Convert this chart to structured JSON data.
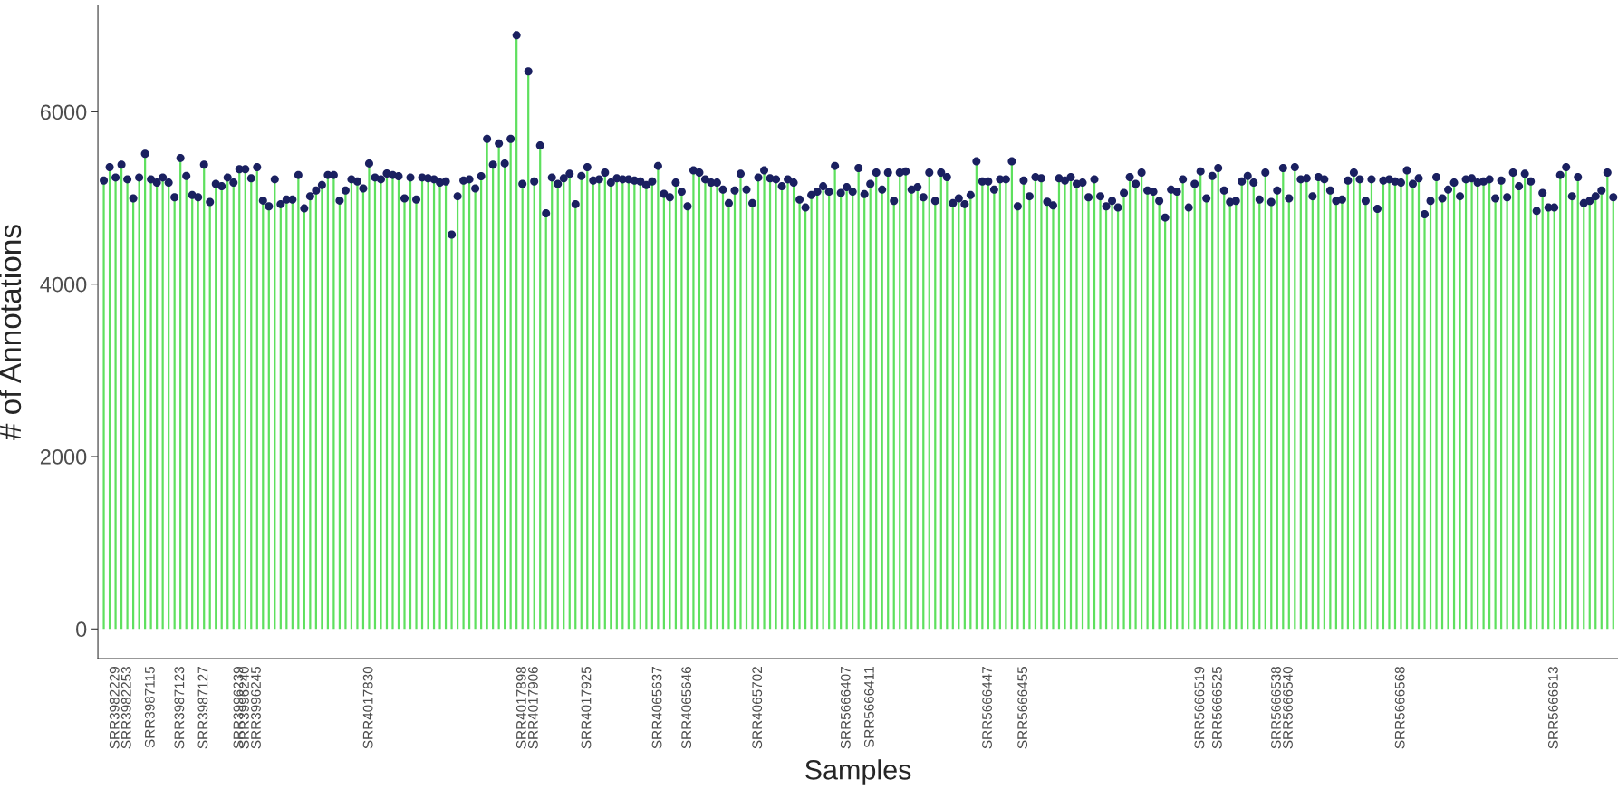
{
  "chart_data": {
    "type": "lollipop",
    "xlabel": "Samples",
    "ylabel": "# of Annotations",
    "categories": [
      null,
      null,
      "SRR3982229",
      null,
      "SRR3982253",
      null,
      null,
      null,
      "SRR3987115",
      null,
      null,
      null,
      null,
      "SRR3987123",
      null,
      null,
      null,
      "SRR3987127",
      null,
      null,
      null,
      null,
      null,
      "SRR3996239",
      "SRR3996240",
      null,
      "SRR3996245",
      null,
      null,
      null,
      null,
      null,
      null,
      null,
      null,
      null,
      null,
      null,
      null,
      null,
      null,
      null,
      null,
      null,
      null,
      "SRR4017830",
      null,
      null,
      null,
      null,
      null,
      null,
      null,
      null,
      null,
      null,
      null,
      null,
      null,
      null,
      null,
      null,
      null,
      null,
      null,
      null,
      null,
      null,
      null,
      null,
      null,
      "SRR4017898",
      null,
      "SRR4017906",
      null,
      null,
      null,
      null,
      null,
      null,
      null,
      null,
      "SRR4017925",
      null,
      null,
      null,
      null,
      null,
      null,
      null,
      null,
      null,
      null,
      null,
      "SRR4065637",
      null,
      null,
      null,
      null,
      "SRR4065646",
      null,
      null,
      null,
      null,
      null,
      null,
      null,
      null,
      null,
      null,
      null,
      "SRR4065702",
      null,
      null,
      null,
      null,
      null,
      null,
      null,
      null,
      null,
      null,
      null,
      null,
      null,
      null,
      "SRR5666407",
      null,
      null,
      null,
      "SRR5666411",
      null,
      null,
      null,
      null,
      null,
      null,
      null,
      null,
      null,
      null,
      null,
      null,
      null,
      null,
      null,
      null,
      null,
      null,
      null,
      "SRR5666447",
      null,
      null,
      null,
      null,
      null,
      "SRR5666455",
      null,
      null,
      null,
      null,
      null,
      null,
      null,
      null,
      null,
      null,
      null,
      null,
      null,
      null,
      null,
      null,
      null,
      null,
      null,
      null,
      null,
      null,
      null,
      null,
      null,
      null,
      null,
      null,
      null,
      "SRR5666519",
      null,
      null,
      "SRR5666525",
      null,
      null,
      null,
      null,
      null,
      null,
      null,
      null,
      null,
      "SRR5666538",
      null,
      "SRR5666540",
      null,
      null,
      null,
      null,
      null,
      null,
      null,
      null,
      null,
      null,
      null,
      null,
      null,
      null,
      null,
      null,
      null,
      null,
      "SRR5666568",
      null,
      null,
      null,
      null,
      null,
      null,
      null,
      null,
      null,
      null,
      null,
      null,
      null,
      null,
      null,
      null,
      null,
      null,
      null,
      null,
      null,
      null,
      null,
      null,
      null,
      "SRR5666613",
      null,
      null,
      null,
      null,
      null,
      null,
      null,
      null,
      null,
      null
    ],
    "series": [
      {
        "color": "#1a2060",
        "values": [
          5203,
          5358,
          5238,
          5387,
          5217,
          4995,
          5238,
          5513,
          5217,
          5178,
          5238,
          5178,
          5009,
          5464,
          5256,
          5034,
          5009,
          5387,
          4953,
          5164,
          5136,
          5238,
          5178,
          5334,
          5334,
          5228,
          5358,
          4970,
          4903,
          5217,
          4928,
          4981,
          4981,
          5267,
          4879,
          5020,
          5087,
          5150,
          5267,
          5267,
          4970,
          5087,
          5217,
          5193,
          5111,
          5401,
          5238,
          5217,
          5284,
          5267,
          5253,
          4995,
          5238,
          4981,
          5238,
          5228,
          5217,
          5178,
          5193,
          4575,
          5020,
          5203,
          5217,
          5111,
          5253,
          5686,
          5387,
          5633,
          5401,
          5686,
          6889,
          5164,
          6469,
          5193,
          5609,
          4822,
          5238,
          5164,
          5228,
          5281,
          4928,
          5256,
          5358,
          5203,
          5217,
          5295,
          5178,
          5228,
          5217,
          5217,
          5203,
          5193,
          5150,
          5193,
          5372,
          5048,
          5009,
          5178,
          5073,
          4903,
          5320,
          5295,
          5217,
          5178,
          5178,
          5097,
          4939,
          5087,
          5281,
          5097,
          4939,
          5238,
          5320,
          5228,
          5217,
          5136,
          5217,
          5178,
          4981,
          4889,
          5034,
          5073,
          5136,
          5073,
          5372,
          5059,
          5126,
          5073,
          5348,
          5044,
          5164,
          5295,
          5097,
          5295,
          4967,
          5295,
          5309,
          5097,
          5126,
          5009,
          5295,
          4967,
          5295,
          5242,
          4939,
          4995,
          4928,
          5034,
          5425,
          5193,
          5193,
          5097,
          5217,
          5217,
          5425,
          4903,
          5203,
          5020,
          5242,
          5228,
          4956,
          4914,
          5228,
          5203,
          5242,
          5164,
          5178,
          5009,
          5217,
          5020,
          4903,
          4967,
          4889,
          5059,
          5242,
          5164,
          5295,
          5087,
          5073,
          4967,
          4773,
          5097,
          5073,
          5217,
          4889,
          5164,
          5309,
          4995,
          5256,
          5348,
          5087,
          4953,
          4967,
          5193,
          5256,
          5178,
          4981,
          5295,
          4953,
          5087,
          5348,
          4995,
          5358,
          5217,
          5228,
          5020,
          5242,
          5217,
          5087,
          4967,
          4981,
          5203,
          5295,
          5217,
          4967,
          5217,
          4875,
          5203,
          5217,
          5193,
          5178,
          5320,
          5164,
          5228,
          4812,
          4967,
          5242,
          4995,
          5097,
          5178,
          5020,
          5217,
          5228,
          5178,
          5193,
          5217,
          4995,
          5203,
          5009,
          5295,
          5136,
          5281,
          5193,
          4850,
          5059,
          4889,
          4889,
          5267,
          5358,
          5020,
          5242,
          4939,
          4967,
          5020,
          5087,
          5295,
          5009
        ]
      }
    ],
    "ylim": [
      -344,
      7233
    ],
    "yticks": [
      0,
      2000,
      4000,
      6000
    ],
    "grid": false,
    "marker": "circle"
  }
}
